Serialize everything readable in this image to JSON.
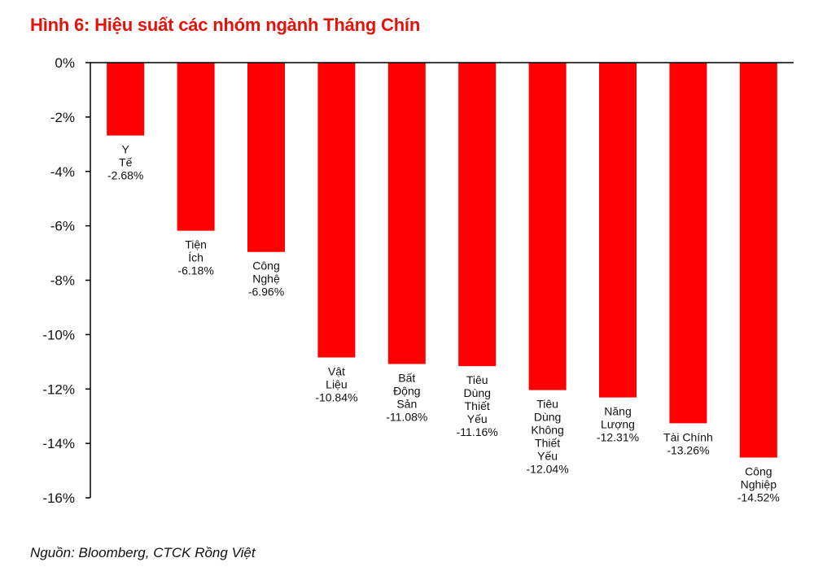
{
  "title": "Hình 6: Hiệu suất các nhóm ngành Tháng Chín",
  "source": "Nguồn: Bloomberg, CTCK Rồng Việt",
  "colors": {
    "accent": "#e3120b",
    "bar": "#ff0000",
    "axis": "#000000",
    "text": "#111111"
  },
  "chart_data": {
    "type": "bar",
    "categories": [
      [
        "Y",
        "Tế"
      ],
      [
        "Tiện",
        "Ích"
      ],
      [
        "Công",
        "Nghệ"
      ],
      [
        "Vật",
        "Liệu"
      ],
      [
        "Bất",
        "Động",
        "Sản"
      ],
      [
        "Tiêu",
        "Dùng",
        "Thiết",
        "Yếu"
      ],
      [
        "Tiêu",
        "Dùng",
        "Không",
        "Thiết",
        "Yếu"
      ],
      [
        "Năng",
        "Lượng"
      ],
      [
        "Tài Chính"
      ],
      [
        "Công",
        "Nghiệp"
      ]
    ],
    "values": [
      -2.68,
      -6.18,
      -6.96,
      -10.84,
      -11.08,
      -11.16,
      -12.04,
      -12.31,
      -13.26,
      -14.52
    ],
    "value_labels": [
      "-2.68%",
      "-6.18%",
      "-6.96%",
      "-10.84%",
      "-11.08%",
      "-11.16%",
      "-12.04%",
      "-12.31%",
      "-13.26%",
      "-14.52%"
    ],
    "ylim": [
      -16,
      0
    ],
    "yticks": [
      0,
      -2,
      -4,
      -6,
      -8,
      -10,
      -12,
      -14,
      -16
    ],
    "ytick_labels": [
      "0%",
      "-2%",
      "-4%",
      "-6%",
      "-8%",
      "-10%",
      "-12%",
      "-14%",
      "-16%"
    ],
    "grid": false,
    "legend": "none",
    "xlabel": "",
    "ylabel": ""
  }
}
